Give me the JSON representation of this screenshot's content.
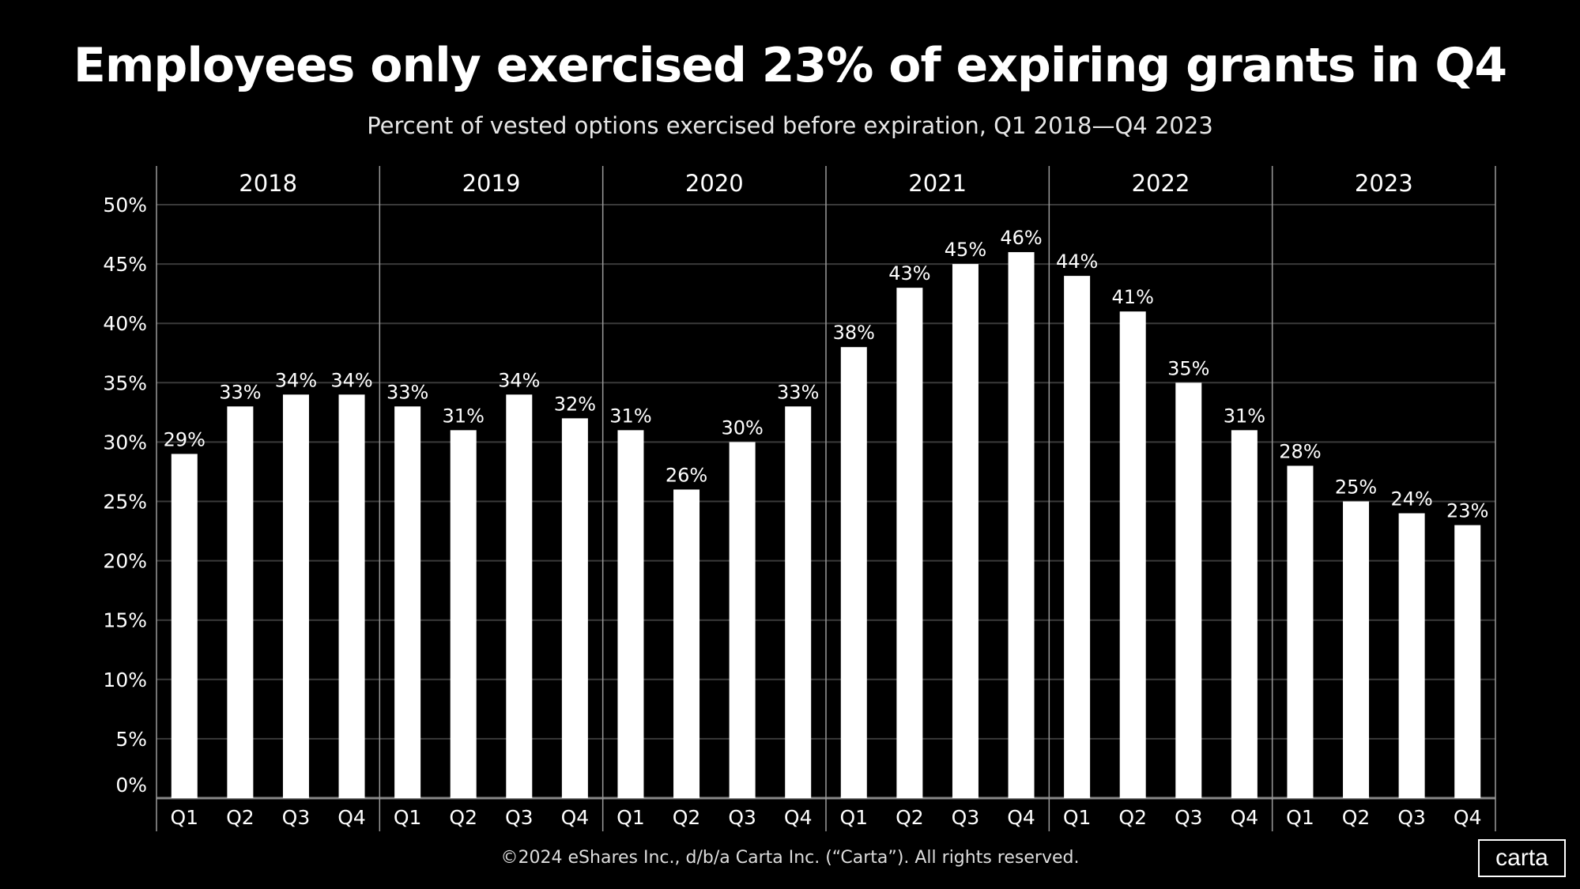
{
  "title": "Employees only exercised 23% of expiring grants in Q4",
  "subtitle": "Percent of vested options exercised before expiration, Q1 2018—Q4 2023",
  "footer": "©2024 eShares Inc., d/b/a Carta Inc. (“Carta”). All rights reserved.",
  "logo": "carta",
  "colors": {
    "background": "#000000",
    "bar": "#ffffff",
    "gridline": "#3a3a3a",
    "separator": "#9a9a9a"
  },
  "chart_data": {
    "type": "bar",
    "title": "Employees only exercised 23% of expiring grants in Q4",
    "subtitle": "Percent of vested options exercised before expiration, Q1 2018—Q4 2023",
    "xlabel": "",
    "ylabel": "",
    "ylim": [
      0,
      50
    ],
    "yticks": [
      0,
      5,
      10,
      15,
      20,
      25,
      30,
      35,
      40,
      45,
      50
    ],
    "ytick_labels": [
      "0%",
      "5%",
      "10%",
      "15%",
      "20%",
      "25%",
      "30%",
      "35%",
      "40%",
      "45%",
      "50%"
    ],
    "grid": true,
    "groups": [
      "2018",
      "2019",
      "2020",
      "2021",
      "2022",
      "2023"
    ],
    "quarters": [
      "Q1",
      "Q2",
      "Q3",
      "Q4"
    ],
    "values": [
      [
        29,
        33,
        34,
        34
      ],
      [
        33,
        31,
        34,
        32
      ],
      [
        31,
        26,
        30,
        33
      ],
      [
        38,
        43,
        45,
        46
      ],
      [
        44,
        41,
        35,
        31
      ],
      [
        28,
        25,
        24,
        23
      ]
    ],
    "data_labels": [
      [
        "29%",
        "33%",
        "34%",
        "34%"
      ],
      [
        "33%",
        "31%",
        "34%",
        "32%"
      ],
      [
        "31%",
        "26%",
        "30%",
        "33%"
      ],
      [
        "38%",
        "43%",
        "45%",
        "46%"
      ],
      [
        "44%",
        "41%",
        "35%",
        "31%"
      ],
      [
        "28%",
        "25%",
        "24%",
        "23%"
      ]
    ]
  }
}
